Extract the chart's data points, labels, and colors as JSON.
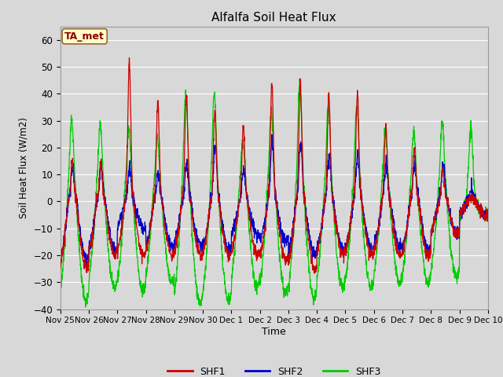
{
  "title": "Alfalfa Soil Heat Flux",
  "ylabel": "Soil Heat Flux (W/m2)",
  "xlabel": "Time",
  "ylim": [
    -40,
    65
  ],
  "yticks": [
    -40,
    -30,
    -20,
    -10,
    0,
    10,
    20,
    30,
    40,
    50,
    60
  ],
  "bg_color": "#d8d8d8",
  "plot_bg_color": "#d8d8d8",
  "grid_color": "#ffffff",
  "line_colors": {
    "SHF1": "#cc0000",
    "SHF2": "#0000cc",
    "SHF3": "#00cc00"
  },
  "legend_label": "TA_met",
  "legend_bg": "#ffffcc",
  "legend_border": "#996633",
  "xtick_labels": [
    "Nov 25",
    "Nov 26",
    "Nov 27",
    "Nov 28",
    "Nov 29",
    "Nov 30",
    "Dec 1",
    "Dec 2",
    "Dec 3",
    "Dec 4",
    "Dec 5",
    "Dec 6",
    "Dec 7",
    "Dec 8",
    "Dec 9",
    "Dec 10"
  ],
  "num_days": 15,
  "points_per_day": 144,
  "day_peak_amps_shf1": [
    15,
    15,
    52,
    37,
    40,
    34,
    28,
    44,
    44,
    40,
    40,
    28,
    20,
    12,
    2
  ],
  "day_peak_amps_shf2": [
    13,
    13,
    13,
    10,
    14,
    22,
    12,
    22,
    22,
    18,
    18,
    14,
    14,
    15,
    4
  ],
  "day_peak_amps_shf3": [
    31,
    29,
    28,
    24,
    40,
    40,
    22,
    33,
    44,
    35,
    35,
    26,
    26,
    30,
    27
  ],
  "day_trough_shf1": [
    -25,
    -20,
    -20,
    -20,
    -20,
    -20,
    -20,
    -22,
    -25,
    -20,
    -20,
    -20,
    -20,
    -12,
    -5
  ],
  "day_trough_shf2": [
    -22,
    -18,
    -10,
    -17,
    -16,
    -18,
    -13,
    -15,
    -20,
    -18,
    -18,
    -17,
    -18,
    -12,
    -5
  ],
  "day_trough_shf3": [
    -37,
    -32,
    -33,
    -30,
    -38,
    -37,
    -32,
    -34,
    -36,
    -32,
    -32,
    -30,
    -30,
    -28,
    -5
  ]
}
